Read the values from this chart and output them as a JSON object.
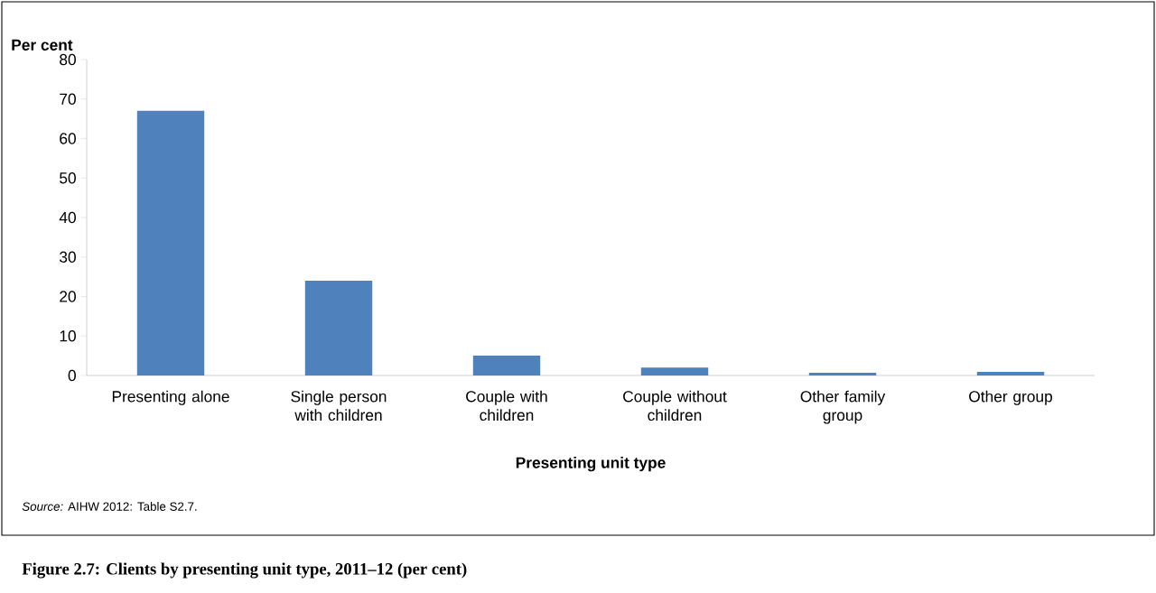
{
  "chart_data": {
    "type": "bar",
    "title": "Figure 2.7: Clients by presenting unit type, 2011–12 (per cent)",
    "xlabel": "Presenting unit type",
    "ylabel": "Per cent",
    "annotations": [
      "*Source:* AIHW 2012: Table S2.7."
    ],
    "categories": [
      "Presenting alone",
      "Single person with children",
      "Couple with children",
      "Couple without children",
      "Other family group",
      "Other group"
    ],
    "values": [
      67.0,
      24.0,
      5.0,
      2.0,
      0.7,
      0.9
    ],
    "color": "#4f81bd",
    "ylim": [
      0,
      80
    ],
    "yticks": [
      0,
      10,
      20,
      30,
      40,
      50,
      60,
      70,
      80
    ],
    "grid": false
  }
}
